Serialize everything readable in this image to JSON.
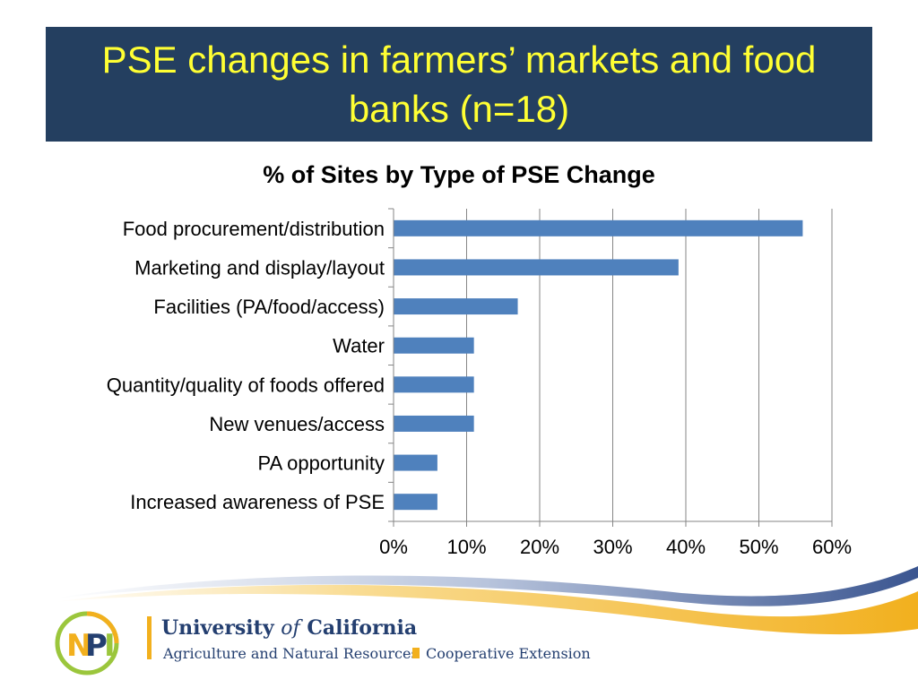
{
  "slide": {
    "title": "PSE changes in farmers’ markets and food banks (n=18)"
  },
  "colors": {
    "title_bg": "#243f60",
    "title_text": "#ffff33",
    "bar": "#4f81bd",
    "grid": "#868686",
    "brand_navy": "#243f70",
    "brand_gold": "#f2b01e"
  },
  "chart_data": {
    "type": "bar",
    "orientation": "horizontal",
    "title": "% of Sites by Type of PSE Change",
    "categories": [
      "Food procurement/distribution",
      "Marketing and display/layout",
      "Facilities (PA/food/access)",
      "Water",
      "Quantity/quality of foods offered",
      "New venues/access",
      "PA opportunity",
      "Increased awareness of PSE"
    ],
    "values": [
      56,
      39,
      17,
      11,
      11,
      11,
      6,
      6
    ],
    "value_unit": "%",
    "xlim": [
      0,
      60
    ],
    "x_ticks": [
      0,
      10,
      20,
      30,
      40,
      50,
      60
    ],
    "x_tick_labels": [
      "0%",
      "10%",
      "20%",
      "30%",
      "40%",
      "50%",
      "60%"
    ],
    "grid": true,
    "legend": "none"
  },
  "footer": {
    "logo_letters": [
      "N",
      "P",
      "I"
    ],
    "org_name_prefix": "University",
    "org_name_of": "of",
    "org_name_suffix": "California",
    "division": "Agriculture and Natural Resources",
    "extension": "Cooperative Extension"
  }
}
